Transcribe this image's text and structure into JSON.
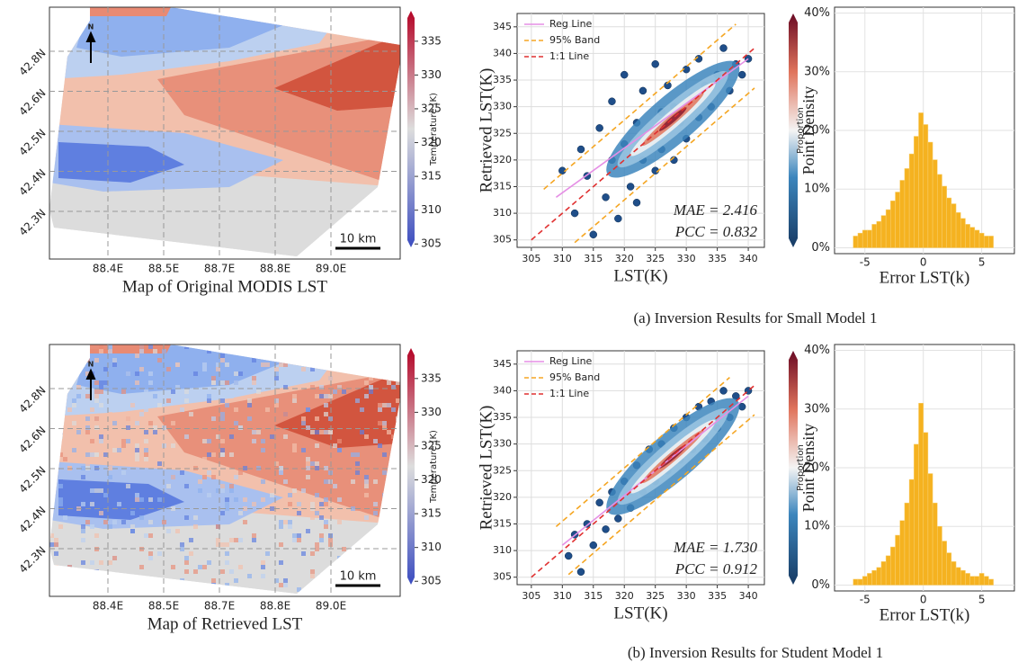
{
  "captions": [
    "(a) Inversion Results for Small Model 1",
    "(b) Inversion Results for Student Model 1"
  ],
  "chart_data": [
    {
      "type": "map",
      "title": "Map of Original MODIS LST",
      "pixelated": false,
      "north": "N",
      "scale_bar": "10 km",
      "xcategories": [
        "88.4E",
        "88.5E",
        "88.7E",
        "88.8E",
        "89.0E"
      ],
      "ycategories": [
        "42.8N",
        "42.6N",
        "42.5N",
        "42.4N",
        "42.3N"
      ],
      "colorbar": {
        "label": "Temperature (K)",
        "lim": [
          304.5,
          339.5
        ],
        "ticks": [
          305,
          310,
          315,
          320,
          325,
          330,
          335
        ]
      }
    },
    {
      "type": "scatter",
      "xlabel": "LST(K)",
      "ylabel": "Retrieved LST(K)",
      "grid": true,
      "color": "#1f4e89",
      "xlim": [
        302.7,
        342.6
      ],
      "xticks": [
        305,
        310,
        315,
        320,
        325,
        330,
        335,
        340
      ],
      "ylim": [
        303.6,
        347.5
      ],
      "yticks": [
        305,
        310,
        315,
        320,
        325,
        330,
        335,
        340,
        345
      ],
      "x": [
        310,
        312,
        313,
        314,
        315,
        316,
        317,
        318,
        318,
        319,
        320,
        320,
        321,
        322,
        322,
        323,
        323,
        324,
        325,
        325,
        326,
        326,
        327,
        327,
        328,
        328,
        329,
        330,
        330,
        331,
        332,
        332,
        333,
        334,
        335,
        336,
        337,
        338,
        339,
        340
      ],
      "values": [
        318,
        310,
        322,
        317,
        306,
        326,
        313,
        320,
        331,
        309,
        323,
        336,
        315,
        327,
        312,
        320,
        333,
        325,
        318,
        338,
        329,
        322,
        326,
        334,
        320,
        330,
        327,
        337,
        324,
        332,
        328,
        339,
        334,
        330,
        336,
        341,
        333,
        338,
        336,
        339
      ],
      "series": [
        {
          "name": "Reg Line",
          "color": "#e58fe5",
          "style": "solid",
          "x": [
            309,
            340
          ],
          "values": [
            313,
            339
          ]
        },
        {
          "name": "95% Band",
          "color": "#f5a623",
          "style": "dashed",
          "x": [
            307,
            338
          ],
          "values": [
            314.5,
            345.5
          ],
          "lower_x": [
            312,
            341
          ],
          "lower": [
            304.5,
            333.5
          ]
        },
        {
          "name": "1:1 Line",
          "color": "#e03030",
          "style": "dashed",
          "x": [
            305,
            341
          ],
          "values": [
            305,
            341
          ]
        }
      ],
      "annotations": [
        "MAE = 2.416",
        "PCC = 0.832"
      ],
      "colorbar": {
        "label": "Point Density"
      }
    },
    {
      "type": "histogram",
      "xlabel": "Error LST(k)",
      "ylabel": "Proportion",
      "grid": true,
      "color": "#f5b220",
      "bins": [
        -6,
        -5.6,
        -5.2,
        -4.8,
        -4.4,
        -4,
        -3.6,
        -3.2,
        -2.8,
        -2.4,
        -2,
        -1.6,
        -1.2,
        -0.8,
        -0.4,
        0,
        0.4,
        0.8,
        1.2,
        1.6,
        2,
        2.4,
        2.8,
        3.2,
        3.6,
        4,
        4.4,
        4.8,
        5.2,
        5.6,
        6
      ],
      "values": [
        2,
        2.5,
        3,
        3,
        4,
        4.5,
        5.5,
        6.5,
        8,
        9.5,
        11.5,
        13.5,
        16,
        19,
        23,
        21,
        18,
        15,
        12.5,
        10.5,
        8.5,
        7.5,
        6,
        5,
        4,
        3.5,
        3,
        2.5,
        2,
        2
      ],
      "xlim": [
        -7.6,
        7.8
      ],
      "xticks": [
        -5,
        0,
        5
      ],
      "ylim": [
        -1,
        41
      ],
      "yticks": [
        {
          "value": 0,
          "label": "0%"
        },
        {
          "value": 10,
          "label": "10%"
        },
        {
          "value": 20,
          "label": "20%"
        },
        {
          "value": 30,
          "label": "30%"
        },
        {
          "value": 40,
          "label": "40%"
        }
      ]
    },
    {
      "type": "map",
      "title": "Map of Retrieved LST",
      "pixelated": true,
      "north": "N",
      "scale_bar": "10 km",
      "xcategories": [
        "88.4E",
        "88.5E",
        "88.7E",
        "88.8E",
        "89.0E"
      ],
      "ycategories": [
        "42.8N",
        "42.6N",
        "42.5N",
        "42.4N",
        "42.3N"
      ],
      "colorbar": {
        "label": "Temperature (K)",
        "lim": [
          304.5,
          339.5
        ],
        "ticks": [
          305,
          310,
          315,
          320,
          325,
          330,
          335
        ]
      }
    },
    {
      "type": "scatter",
      "xlabel": "LST(K)",
      "ylabel": "Retrieved LST(K)",
      "grid": true,
      "color": "#1f4e89",
      "xlim": [
        302.7,
        342.6
      ],
      "xticks": [
        305,
        310,
        315,
        320,
        325,
        330,
        335,
        340
      ],
      "ylim": [
        303.6,
        347.5
      ],
      "yticks": [
        305,
        310,
        315,
        320,
        325,
        330,
        335,
        340,
        345
      ],
      "x": [
        311,
        312,
        313,
        314,
        315,
        316,
        317,
        318,
        319,
        320,
        321,
        322,
        323,
        324,
        325,
        326,
        327,
        328,
        329,
        330,
        331,
        332,
        333,
        334,
        335,
        336,
        337,
        338,
        339,
        340
      ],
      "values": [
        309,
        313,
        306,
        315,
        311,
        319,
        314,
        321,
        316,
        323,
        318,
        326,
        321,
        329,
        323,
        330,
        325,
        333,
        327,
        335,
        329,
        337,
        331,
        338,
        333,
        340,
        335,
        339,
        337,
        340
      ],
      "series": [
        {
          "name": "Reg Line",
          "color": "#e58fe5",
          "style": "solid",
          "x": [
            310,
            340
          ],
          "values": [
            311,
            339
          ]
        },
        {
          "name": "95% Band",
          "color": "#f5a623",
          "style": "dashed",
          "x": [
            309,
            337
          ],
          "values": [
            314.5,
            342.5
          ],
          "lower_x": [
            311,
            341
          ],
          "lower": [
            305.5,
            335.5
          ]
        },
        {
          "name": "1:1 Line",
          "color": "#e03030",
          "style": "dashed",
          "x": [
            305,
            341
          ],
          "values": [
            305,
            341
          ]
        }
      ],
      "annotations": [
        "MAE = 1.730",
        "PCC = 0.912"
      ],
      "colorbar": {
        "label": "Point Density"
      }
    },
    {
      "type": "histogram",
      "xlabel": "Error LST(k)",
      "ylabel": "Proportion",
      "grid": true,
      "color": "#f5b220",
      "bins": [
        -6,
        -5.6,
        -5.2,
        -4.8,
        -4.4,
        -4,
        -3.6,
        -3.2,
        -2.8,
        -2.4,
        -2,
        -1.6,
        -1.2,
        -0.8,
        -0.4,
        0,
        0.4,
        0.8,
        1.2,
        1.6,
        2,
        2.4,
        2.8,
        3.2,
        3.6,
        4,
        4.4,
        4.8,
        5.2,
        5.6,
        6
      ],
      "values": [
        1,
        1,
        1.5,
        2,
        2.5,
        3,
        4,
        5,
        6.5,
        8.5,
        11,
        14,
        18,
        24,
        31,
        26,
        19,
        14,
        10,
        7.5,
        5.5,
        4,
        3,
        2.5,
        2,
        1.5,
        1.5,
        2,
        1.5,
        1
      ],
      "xlim": [
        -7.6,
        7.8
      ],
      "xticks": [
        -5,
        0,
        5
      ],
      "ylim": [
        -1,
        41
      ],
      "yticks": [
        {
          "value": 0,
          "label": "0%"
        },
        {
          "value": 10,
          "label": "10%"
        },
        {
          "value": 20,
          "label": "20%"
        },
        {
          "value": 30,
          "label": "30%"
        },
        {
          "value": 40,
          "label": "40%"
        }
      ]
    }
  ]
}
